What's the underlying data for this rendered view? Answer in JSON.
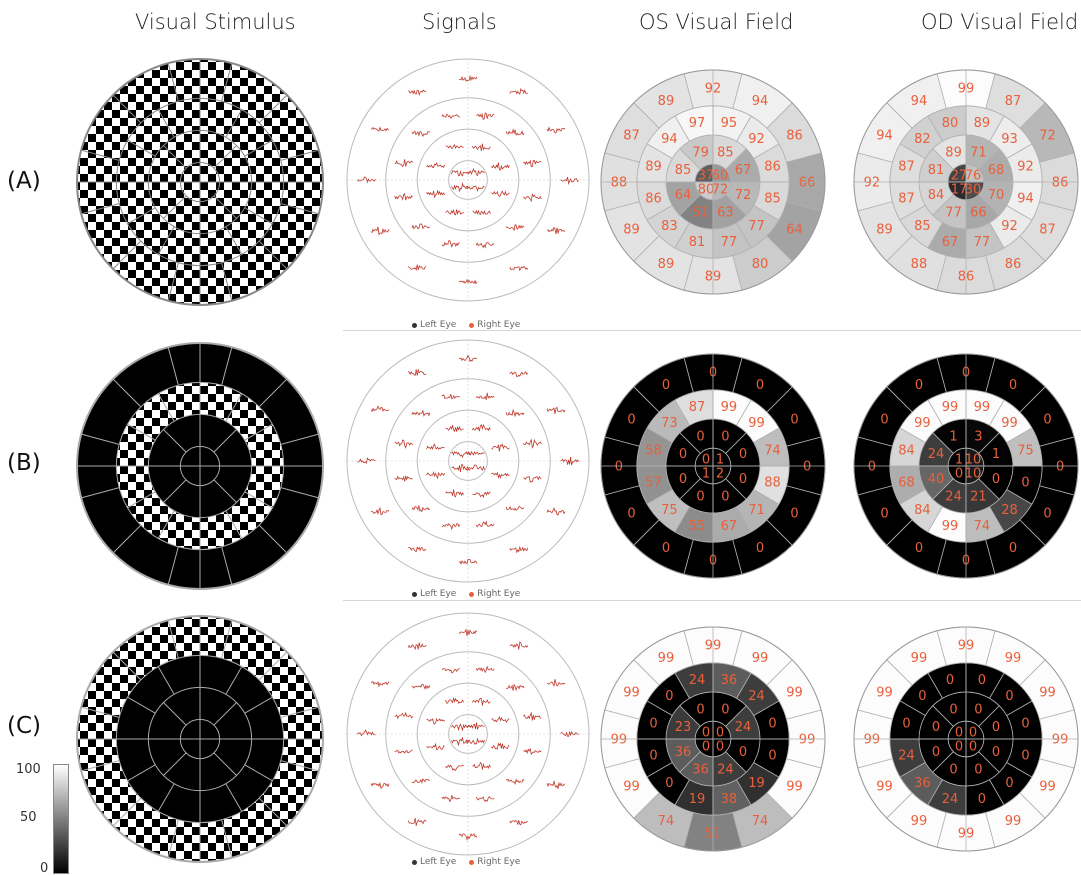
{
  "columns": [
    "Visual Stimulus",
    "Signals",
    "OS Visual Field",
    "OD Visual Field"
  ],
  "rows": [
    "(A)",
    "(B)",
    "(C)"
  ],
  "signals_legend": {
    "left": "Left Eye",
    "right": "Right Eye"
  },
  "colors": {
    "number_text": "#e8603c",
    "trace": "#c0392b",
    "legend_left": "#333333",
    "legend_right": "#e8603c"
  },
  "colorbar": {
    "max": "100",
    "mid": "50",
    "min": "0"
  },
  "visual_fields": {
    "A_os": {
      "r1": [
        60,
        37,
        80,
        72
      ],
      "r2": [
        67,
        85,
        79,
        85,
        64,
        51,
        63,
        72
      ],
      "r3": [
        86,
        92,
        95,
        97,
        94,
        89,
        86,
        83,
        81,
        77,
        77,
        85
      ],
      "r4": [
        86,
        94,
        92,
        89,
        87,
        88,
        89,
        89,
        89,
        80,
        64,
        66
      ]
    },
    "A_od": {
      "r1": [
        76,
        27,
        17,
        30
      ],
      "r2": [
        68,
        71,
        89,
        81,
        84,
        77,
        66,
        70
      ],
      "r3": [
        92,
        93,
        89,
        80,
        82,
        87,
        87,
        85,
        67,
        77,
        92,
        94
      ],
      "r4": [
        72,
        87,
        99,
        94,
        94,
        92,
        89,
        88,
        86,
        86,
        87,
        86
      ]
    },
    "B_os": {
      "r1": [
        1,
        0,
        1,
        2
      ],
      "r2": [
        0,
        0,
        0,
        0,
        0,
        0,
        0,
        0
      ],
      "r3": [
        74,
        99,
        99,
        87,
        73,
        58,
        57,
        75,
        55,
        67,
        71,
        88
      ],
      "r4": [
        0,
        0,
        0,
        0,
        0,
        0,
        0,
        0,
        0,
        0,
        0,
        0
      ]
    },
    "B_od": {
      "r1": [
        10,
        1,
        0,
        10
      ],
      "r2": [
        1,
        3,
        1,
        24,
        40,
        24,
        21,
        0
      ],
      "r3": [
        75,
        99,
        99,
        99,
        99,
        84,
        68,
        84,
        99,
        74,
        28,
        0
      ],
      "r4": [
        0,
        0,
        0,
        0,
        0,
        0,
        0,
        0,
        0,
        0,
        0,
        0
      ]
    },
    "C_os": {
      "r1": [
        0,
        0,
        0,
        0
      ],
      "r2": [
        24,
        0,
        0,
        23,
        36,
        36,
        24,
        0
      ],
      "r3": [
        0,
        24,
        36,
        24,
        0,
        0,
        0,
        0,
        19,
        38,
        19,
        0
      ],
      "r4": [
        99,
        99,
        99,
        99,
        99,
        99,
        99,
        74,
        51,
        74,
        99,
        99
      ]
    },
    "C_od": {
      "r1": [
        0,
        0,
        0,
        0
      ],
      "r2": [
        0,
        0,
        0,
        0,
        0,
        0,
        0,
        0
      ],
      "r3": [
        0,
        0,
        0,
        0,
        0,
        0,
        24,
        36,
        24,
        0,
        0,
        0
      ],
      "r4": [
        99,
        99,
        99,
        99,
        99,
        99,
        99,
        99,
        99,
        99,
        99,
        99
      ]
    }
  }
}
